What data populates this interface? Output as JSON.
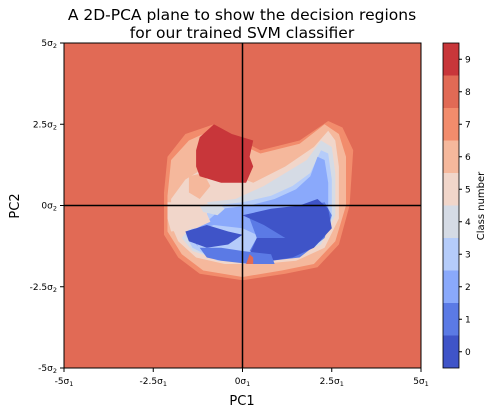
{
  "chart_data": {
    "type": "heatmap",
    "title_lines": [
      "A 2D-PCA plane to show the decision regions",
      "for our trained SVM classifier"
    ],
    "xlabel": "PC1",
    "ylabel": "PC2",
    "xlim": [
      -5,
      5
    ],
    "ylim": [
      -5,
      5
    ],
    "x_ticks": [
      {
        "value": -5,
        "label": "-5σ",
        "sub": "1"
      },
      {
        "value": -2.5,
        "label": "-2.5σ",
        "sub": "1"
      },
      {
        "value": 0,
        "label": "0σ",
        "sub": "1"
      },
      {
        "value": 2.5,
        "label": "2.5σ",
        "sub": "1"
      },
      {
        "value": 5,
        "label": "5σ",
        "sub": "1"
      }
    ],
    "y_ticks": [
      {
        "value": 5,
        "label": "5σ",
        "sub": "2"
      },
      {
        "value": 2.5,
        "label": "2.5σ",
        "sub": "2"
      },
      {
        "value": 0,
        "label": "0σ",
        "sub": "2"
      },
      {
        "value": -2.5,
        "label": "-2.5σ",
        "sub": "2"
      },
      {
        "value": -5,
        "label": "-5σ",
        "sub": "2"
      }
    ],
    "background_class": 8,
    "reference_lines": {
      "x": 0,
      "y": 0
    },
    "colorbar": {
      "label": "Class number",
      "classes": [
        {
          "class": 0,
          "label": "0",
          "color": "#3f54c8"
        },
        {
          "class": 1,
          "label": "1",
          "color": "#5b7ae5"
        },
        {
          "class": 2,
          "label": "2",
          "color": "#8aa9fb"
        },
        {
          "class": 3,
          "label": "3",
          "color": "#b5ccfa"
        },
        {
          "class": 4,
          "label": "4",
          "color": "#d5dbe5"
        },
        {
          "class": 5,
          "label": "5",
          "color": "#f1d6ca"
        },
        {
          "class": 6,
          "label": "6",
          "color": "#f5b89c"
        },
        {
          "class": 7,
          "label": "7",
          "color": "#f28c6c"
        },
        {
          "class": 8,
          "label": "8",
          "color": "#e16a55"
        },
        {
          "class": 9,
          "label": "9",
          "color": "#c8363a"
        }
      ]
    },
    "regions": [
      {
        "class": 7,
        "points": [
          [
            -2.1,
            1.5
          ],
          [
            -1.6,
            2.2
          ],
          [
            -0.8,
            2.5
          ],
          [
            -0.2,
            2.1
          ],
          [
            0.5,
            1.7
          ],
          [
            1.6,
            2.0
          ],
          [
            2.4,
            2.6
          ],
          [
            2.8,
            2.4
          ],
          [
            3.1,
            1.7
          ],
          [
            3.0,
            0.0
          ],
          [
            2.7,
            -1.2
          ],
          [
            2.1,
            -1.9
          ],
          [
            1.2,
            -2.1
          ],
          [
            0.0,
            -2.3
          ],
          [
            -1.2,
            -2.1
          ],
          [
            -1.8,
            -1.6
          ],
          [
            -2.2,
            -0.9
          ],
          [
            -2.2,
            0.4
          ]
        ]
      },
      {
        "class": 6,
        "points": [
          [
            -2.0,
            1.4
          ],
          [
            -1.5,
            2.0
          ],
          [
            -0.9,
            2.3
          ],
          [
            -0.3,
            2.0
          ],
          [
            0.5,
            1.6
          ],
          [
            1.6,
            1.9
          ],
          [
            2.3,
            2.5
          ],
          [
            2.7,
            2.2
          ],
          [
            2.9,
            1.5
          ],
          [
            2.9,
            0.0
          ],
          [
            2.6,
            -1.1
          ],
          [
            2.0,
            -1.8
          ],
          [
            1.1,
            -2.0
          ],
          [
            0.0,
            -2.2
          ],
          [
            -1.1,
            -2.0
          ],
          [
            -1.7,
            -1.5
          ],
          [
            -2.1,
            -0.8
          ],
          [
            -2.1,
            0.3
          ]
        ]
      },
      {
        "class": 5,
        "points": [
          [
            -2.0,
            0.2
          ],
          [
            -1.6,
            0.8
          ],
          [
            -1.0,
            1.2
          ],
          [
            -0.4,
            1.0
          ],
          [
            0.3,
            0.7
          ],
          [
            1.2,
            1.2
          ],
          [
            2.0,
            1.8
          ],
          [
            2.4,
            2.3
          ],
          [
            2.6,
            2.0
          ],
          [
            2.7,
            1.2
          ],
          [
            2.7,
            -0.4
          ],
          [
            2.3,
            -1.3
          ],
          [
            1.5,
            -1.7
          ],
          [
            0.5,
            -1.8
          ],
          [
            -0.5,
            -1.8
          ],
          [
            -1.3,
            -1.6
          ],
          [
            -1.8,
            -1.1
          ],
          [
            -2.0,
            -0.6
          ]
        ]
      },
      {
        "class": 4,
        "points": [
          [
            -1.0,
            0.1
          ],
          [
            -0.2,
            0.2
          ],
          [
            0.6,
            0.6
          ],
          [
            1.2,
            1.0
          ],
          [
            1.8,
            1.4
          ],
          [
            2.2,
            2.0
          ],
          [
            2.5,
            1.8
          ],
          [
            2.6,
            1.0
          ],
          [
            2.6,
            -0.3
          ],
          [
            2.2,
            -1.2
          ],
          [
            1.4,
            -1.6
          ],
          [
            0.4,
            -1.7
          ],
          [
            -0.6,
            -1.7
          ],
          [
            -1.4,
            -1.4
          ],
          [
            -1.7,
            -1.0
          ],
          [
            -1.4,
            -0.6
          ],
          [
            -0.8,
            -0.2
          ]
        ]
      },
      {
        "class": 3,
        "points": [
          [
            -0.8,
            0.0
          ],
          [
            0.0,
            0.1
          ],
          [
            0.8,
            0.3
          ],
          [
            1.4,
            0.6
          ],
          [
            1.9,
            1.0
          ],
          [
            2.2,
            1.7
          ],
          [
            2.4,
            1.6
          ],
          [
            2.5,
            0.8
          ],
          [
            2.5,
            -0.4
          ],
          [
            2.1,
            -1.2
          ],
          [
            1.4,
            -1.5
          ],
          [
            0.4,
            -1.7
          ],
          [
            -0.7,
            -1.7
          ],
          [
            -1.4,
            -1.3
          ],
          [
            -1.6,
            -0.9
          ],
          [
            -1.2,
            -0.5
          ]
        ]
      },
      {
        "class": 2,
        "points": [
          [
            -0.6,
            -0.1
          ],
          [
            0.2,
            0.0
          ],
          [
            0.9,
            0.2
          ],
          [
            1.5,
            0.5
          ],
          [
            1.9,
            0.9
          ],
          [
            2.1,
            1.5
          ],
          [
            2.3,
            1.4
          ],
          [
            2.4,
            0.7
          ],
          [
            2.4,
            -0.2
          ],
          [
            2.1,
            -1.0
          ],
          [
            1.0,
            -1.5
          ],
          [
            0.0,
            -1.6
          ],
          [
            -0.9,
            -1.6
          ],
          [
            -1.3,
            -1.2
          ],
          [
            -1.4,
            -0.8
          ],
          [
            -1.0,
            -0.5
          ]
        ]
      },
      {
        "class": 3,
        "points": [
          [
            -1.4,
            -0.8
          ],
          [
            -0.8,
            -0.6
          ],
          [
            0.0,
            -0.7
          ],
          [
            0.6,
            -1.0
          ],
          [
            1.2,
            -1.0
          ],
          [
            1.6,
            -1.4
          ],
          [
            1.1,
            -1.6
          ],
          [
            0.3,
            -1.6
          ],
          [
            -0.6,
            -1.6
          ],
          [
            -1.2,
            -1.4
          ]
        ]
      },
      {
        "class": 1,
        "points": [
          [
            0.2,
            -0.4
          ],
          [
            1.0,
            -0.1
          ],
          [
            1.8,
            0.0
          ],
          [
            2.3,
            0.1
          ],
          [
            2.5,
            -0.3
          ],
          [
            2.3,
            -1.0
          ],
          [
            1.6,
            -1.6
          ],
          [
            0.8,
            -1.7
          ],
          [
            0.2,
            -1.4
          ],
          [
            0.4,
            -1.0
          ]
        ]
      },
      {
        "class": 0,
        "points": [
          [
            0.0,
            -0.3
          ],
          [
            0.8,
            -0.1
          ],
          [
            1.6,
            0.0
          ],
          [
            2.1,
            0.2
          ],
          [
            2.4,
            -0.1
          ],
          [
            2.5,
            -0.7
          ],
          [
            2.0,
            -1.3
          ],
          [
            1.4,
            -1.6
          ],
          [
            0.8,
            -1.7
          ],
          [
            0.2,
            -1.5
          ],
          [
            0.4,
            -1.0
          ],
          [
            1.2,
            -1.0
          ],
          [
            0.6,
            -0.6
          ]
        ]
      },
      {
        "class": 0,
        "points": [
          [
            -1.6,
            -0.8
          ],
          [
            -1.0,
            -0.6
          ],
          [
            -0.4,
            -0.8
          ],
          [
            0.0,
            -0.9
          ],
          [
            -0.4,
            -1.2
          ],
          [
            -1.0,
            -1.3
          ],
          [
            -1.5,
            -1.1
          ]
        ]
      },
      {
        "class": 1,
        "points": [
          [
            -1.2,
            -1.3
          ],
          [
            -0.6,
            -1.3
          ],
          [
            0.0,
            -1.4
          ],
          [
            0.8,
            -1.5
          ],
          [
            0.9,
            -1.8
          ],
          [
            0.2,
            -1.8
          ],
          [
            -0.6,
            -1.7
          ],
          [
            -1.0,
            -1.6
          ]
        ]
      },
      {
        "class": 5,
        "points": [
          [
            -2.1,
            0.1
          ],
          [
            -1.6,
            0.1
          ],
          [
            -1.1,
            0.0
          ],
          [
            -0.9,
            -0.5
          ],
          [
            -1.3,
            -0.7
          ],
          [
            -2.0,
            -0.8
          ],
          [
            -2.1,
            -0.4
          ]
        ]
      },
      {
        "class": 6,
        "points": [
          [
            -1.5,
            0.9
          ],
          [
            -1.1,
            1.0
          ],
          [
            -0.9,
            0.6
          ],
          [
            -1.2,
            0.2
          ],
          [
            -1.5,
            0.4
          ]
        ]
      },
      {
        "class": 4,
        "points": [
          [
            -1.2,
            0.0
          ],
          [
            -0.7,
            0.1
          ],
          [
            -0.5,
            -0.1
          ],
          [
            -0.7,
            -0.3
          ],
          [
            -1.1,
            -0.2
          ]
        ]
      },
      {
        "class": 8,
        "points": [
          [
            0.2,
            -1.5
          ],
          [
            0.3,
            -1.6
          ],
          [
            0.3,
            -1.8
          ],
          [
            0.1,
            -1.8
          ]
        ]
      },
      {
        "class": 9,
        "points": [
          [
            -1.3,
            1.7
          ],
          [
            -1.2,
            2.1
          ],
          [
            -0.8,
            2.5
          ],
          [
            -0.3,
            2.2
          ],
          [
            0.3,
            2.0
          ],
          [
            0.2,
            1.5
          ],
          [
            0.3,
            1.2
          ],
          [
            0.1,
            0.7
          ],
          [
            -0.6,
            0.7
          ],
          [
            -1.2,
            0.9
          ],
          [
            -1.3,
            1.2
          ]
        ]
      }
    ]
  }
}
